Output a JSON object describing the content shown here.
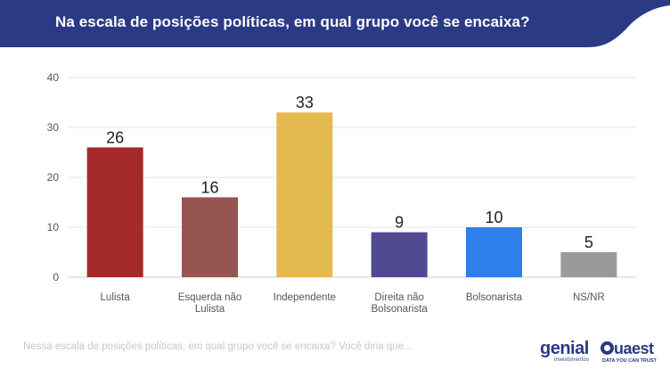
{
  "header": {
    "title": "Na escala de posições políticas, em qual grupo você se encaixa?"
  },
  "chart_data": {
    "type": "bar",
    "categories": [
      [
        "Lulista"
      ],
      [
        "Esquerda não",
        "Lulista"
      ],
      [
        "Independente"
      ],
      [
        "Direita não",
        "Bolsonarista"
      ],
      [
        "Bolsonarista"
      ],
      [
        "NS/NR"
      ]
    ],
    "values": [
      26,
      16,
      33,
      9,
      10,
      5
    ],
    "colors": [
      "#a52a2a",
      "#955552",
      "#e4b94d",
      "#514a91",
      "#2e7fe9",
      "#9a9a9a"
    ],
    "ylim": [
      0,
      40
    ],
    "yticks": [
      0,
      10,
      20,
      30,
      40
    ],
    "grid": true,
    "legend": "none"
  },
  "footer": {
    "note": "Nessa escala de posições políticas, em qual grupo você se encaixa? Você diria que...",
    "logos": [
      {
        "name": "genial",
        "text": "genial",
        "subtext": "investimentos"
      },
      {
        "name": "quaest",
        "text": "uaest",
        "subtext": "DATA YOU CAN TRUST"
      }
    ]
  },
  "colors": {
    "header_bg": "#2b3a84",
    "grid": "#e6e6e6",
    "tick_text": "#555555",
    "value_text": "#222222"
  }
}
